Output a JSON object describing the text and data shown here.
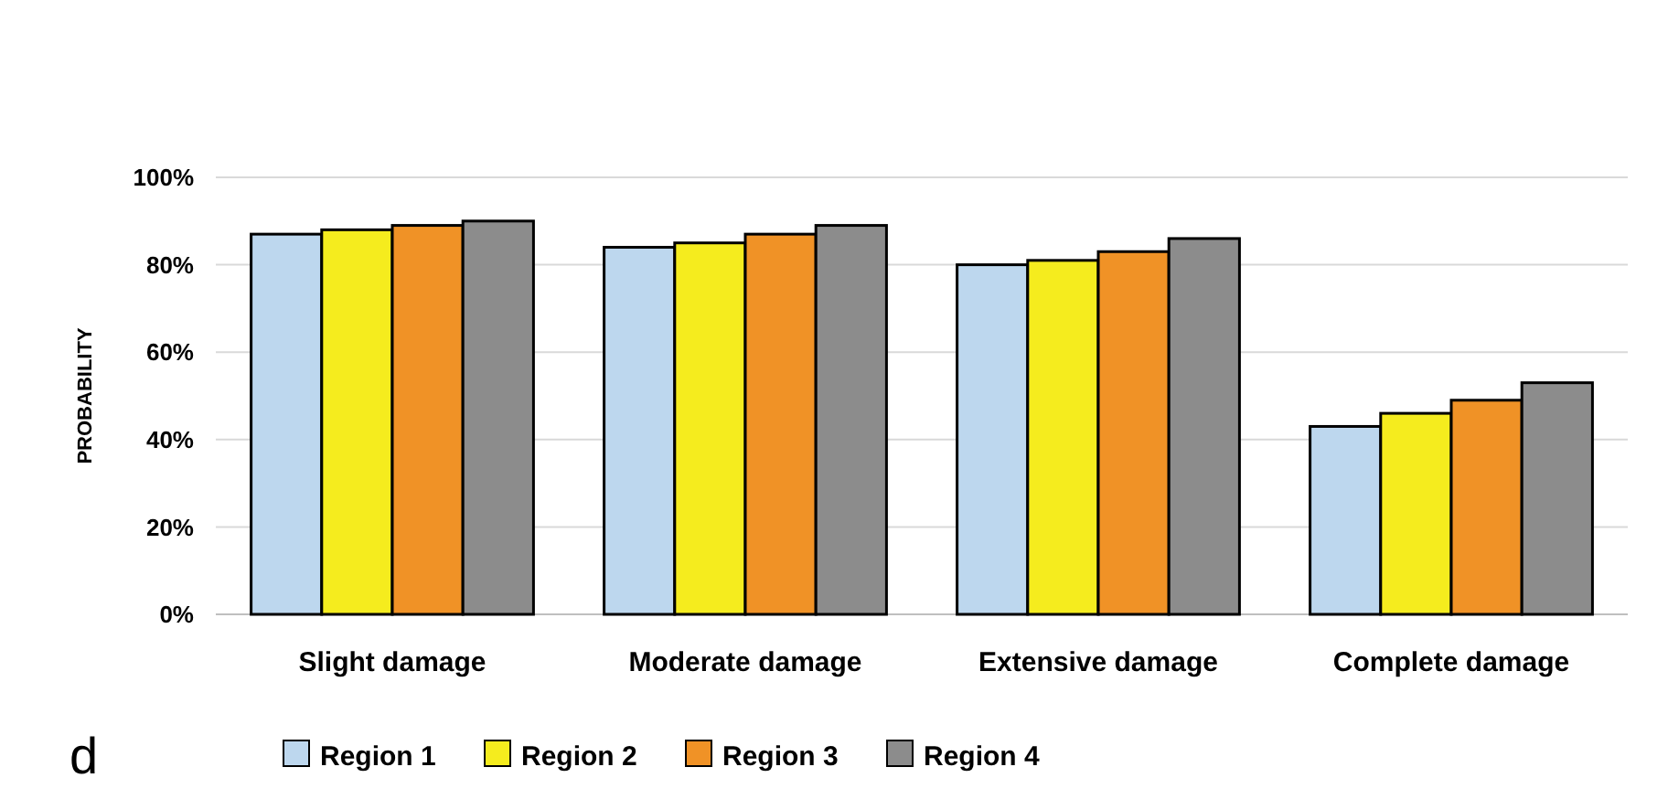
{
  "chart_data": {
    "type": "bar",
    "ylabel": "PROBABILITY",
    "categories": [
      "Slight damage",
      "Moderate damage",
      "Extensive damage",
      "Complete damage"
    ],
    "series": [
      {
        "name": "Region 1",
        "color": "#bdd7ee",
        "values": [
          87,
          84,
          80,
          43
        ]
      },
      {
        "name": "Region 2",
        "color": "#f5ec1e",
        "values": [
          88,
          85,
          81,
          46
        ]
      },
      {
        "name": "Region 3",
        "color": "#f09226",
        "values": [
          89,
          87,
          83,
          49
        ]
      },
      {
        "name": "Region 4",
        "color": "#8c8c8c",
        "values": [
          90,
          89,
          86,
          53
        ]
      }
    ],
    "ylim": [
      0,
      100
    ],
    "yticks": [
      {
        "value": 0,
        "label": "0%"
      },
      {
        "value": 20,
        "label": "20%"
      },
      {
        "value": 40,
        "label": "40%"
      },
      {
        "value": 60,
        "label": "60%"
      },
      {
        "value": 80,
        "label": "80%"
      },
      {
        "value": 100,
        "label": "100%"
      }
    ],
    "grid": "y",
    "legend": "bottom",
    "annotations": [
      "d"
    ]
  }
}
